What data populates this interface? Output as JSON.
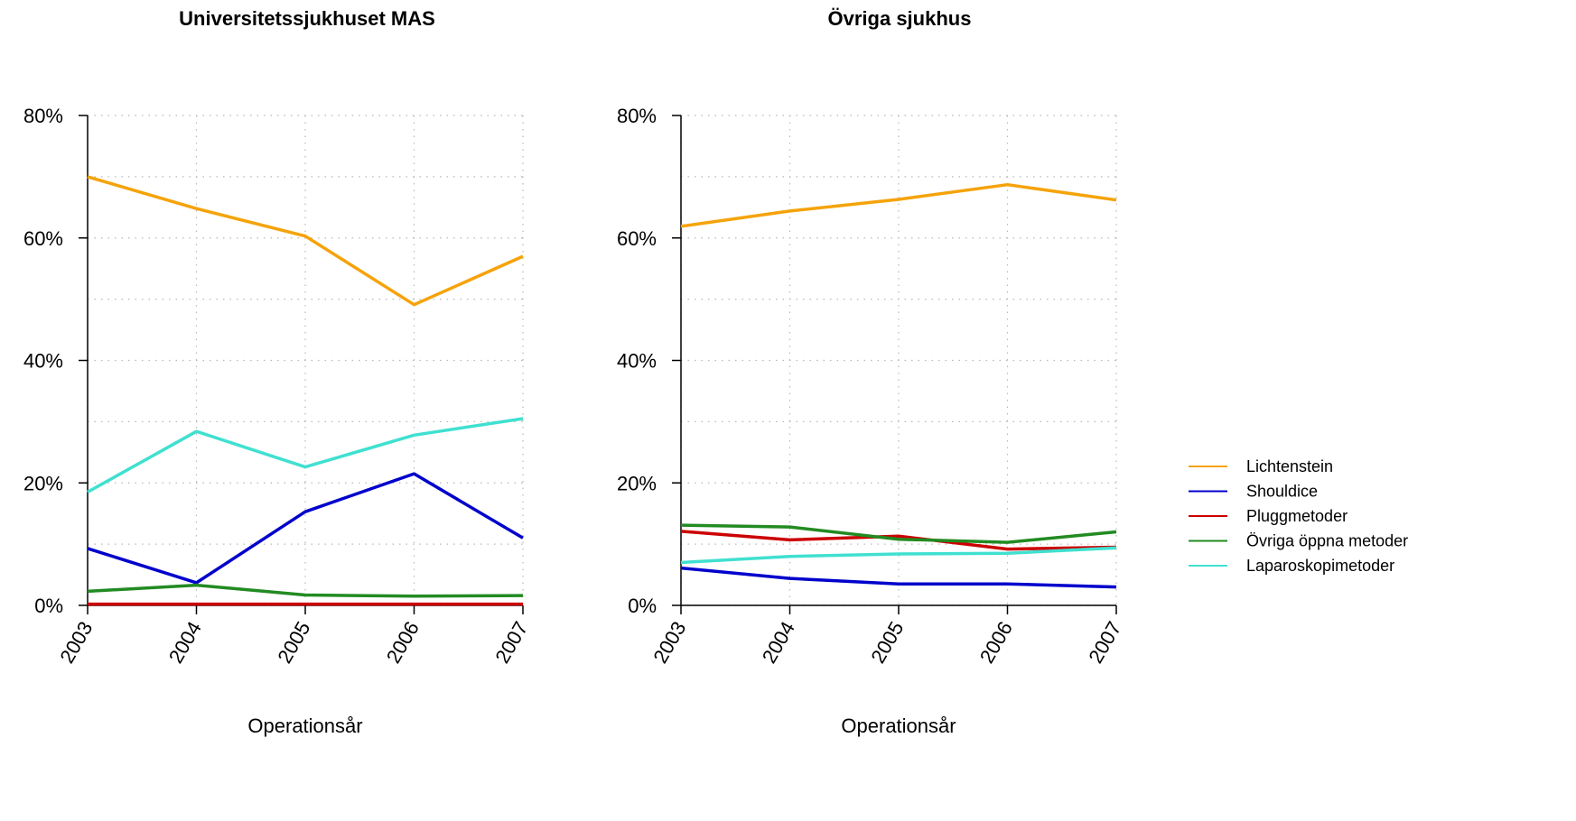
{
  "chart_data": [
    {
      "type": "line",
      "title": "Universitetssjukhuset MAS",
      "xlabel": "Operationsår",
      "ylabel": "",
      "x": [
        "2003",
        "2004",
        "2005",
        "2006",
        "2007"
      ],
      "ylim": [
        0,
        80
      ],
      "yticks": [
        "0%",
        "20%",
        "40%",
        "60%",
        "80%"
      ],
      "grid": true,
      "series": [
        {
          "name": "Lichtenstein",
          "color": "#F5A30A",
          "values": [
            70.0,
            64.8,
            60.3,
            49.1,
            57.0
          ]
        },
        {
          "name": "Shouldice",
          "color": "#0000CC",
          "values": [
            9.3,
            3.7,
            15.3,
            21.5,
            11.0
          ]
        },
        {
          "name": "Pluggmetoder",
          "color": "#CC0000",
          "values": [
            0.2,
            0.2,
            0.2,
            0.2,
            0.2
          ]
        },
        {
          "name": "Övriga öppna metoder",
          "color": "#228B22",
          "values": [
            2.3,
            3.3,
            1.7,
            1.5,
            1.6
          ]
        },
        {
          "name": "Laparoskopimetoder",
          "color": "#40E0D0",
          "values": [
            18.5,
            28.4,
            22.6,
            27.8,
            30.5
          ]
        }
      ]
    },
    {
      "type": "line",
      "title": "Övriga sjukhus",
      "xlabel": "Operationsår",
      "ylabel": "",
      "x": [
        "2003",
        "2004",
        "2005",
        "2006",
        "2007"
      ],
      "ylim": [
        0,
        80
      ],
      "yticks": [
        "0%",
        "20%",
        "40%",
        "60%",
        "80%"
      ],
      "grid": true,
      "series": [
        {
          "name": "Lichtenstein",
          "color": "#F5A30A",
          "values": [
            61.9,
            64.4,
            66.3,
            68.7,
            66.2
          ]
        },
        {
          "name": "Shouldice",
          "color": "#0000CC",
          "values": [
            6.1,
            4.4,
            3.5,
            3.5,
            3.0
          ]
        },
        {
          "name": "Pluggmetoder",
          "color": "#CC0000",
          "values": [
            12.1,
            10.7,
            11.3,
            9.2,
            9.5
          ]
        },
        {
          "name": "Övriga öppna metoder",
          "color": "#228B22",
          "values": [
            13.1,
            12.8,
            10.8,
            10.3,
            12.0
          ]
        },
        {
          "name": "Laparoskopimetoder",
          "color": "#40E0D0",
          "values": [
            7.0,
            8.0,
            8.4,
            8.5,
            9.4
          ]
        }
      ]
    }
  ],
  "legend": {
    "position": "right",
    "items": [
      {
        "label": "Lichtenstein",
        "color": "#F5A30A"
      },
      {
        "label": "Shouldice",
        "color": "#0000CC"
      },
      {
        "label": "Pluggmetoder",
        "color": "#CC0000"
      },
      {
        "label": "Övriga öppna metoder",
        "color": "#228B22"
      },
      {
        "label": "Laparoskopimetoder",
        "color": "#40E0D0"
      }
    ]
  }
}
